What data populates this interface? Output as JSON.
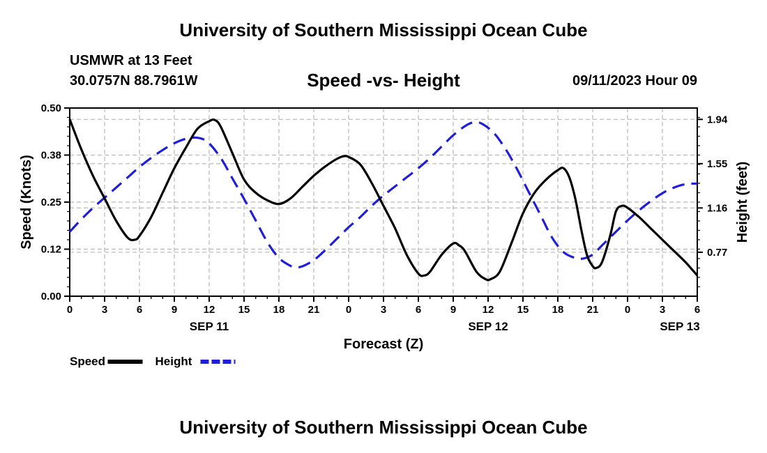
{
  "header": {
    "title": "University of Southern Mississippi Ocean Cube",
    "station_name": "USMWR at 13 Feet",
    "coords": "30.0757N  88.7961W",
    "chart_title": "Speed -vs- Height",
    "timestamp": "09/11/2023 Hour 09"
  },
  "footer": {
    "title": "University of Southern Mississippi Ocean Cube"
  },
  "chart_data": {
    "type": "line",
    "title": "Speed -vs- Height",
    "xlabel": "Forecast (Z)",
    "ylabel_left": "Speed (Knots)",
    "ylabel_right": "Height (feet)",
    "x_range": [
      0,
      54
    ],
    "y_left_range": [
      0,
      0.5
    ],
    "y_right_range": [
      0.383,
      2.04
    ],
    "x_ticks": [
      {
        "x": 0,
        "label": "0"
      },
      {
        "x": 3,
        "label": "3"
      },
      {
        "x": 6,
        "label": "6"
      },
      {
        "x": 9,
        "label": "9"
      },
      {
        "x": 12,
        "label": "12"
      },
      {
        "x": 15,
        "label": "15"
      },
      {
        "x": 18,
        "label": "18"
      },
      {
        "x": 21,
        "label": "21"
      },
      {
        "x": 24,
        "label": "0"
      },
      {
        "x": 27,
        "label": "3"
      },
      {
        "x": 30,
        "label": "6"
      },
      {
        "x": 33,
        "label": "9"
      },
      {
        "x": 36,
        "label": "12"
      },
      {
        "x": 39,
        "label": "15"
      },
      {
        "x": 42,
        "label": "18"
      },
      {
        "x": 45,
        "label": "21"
      },
      {
        "x": 48,
        "label": "0"
      },
      {
        "x": 51,
        "label": "3"
      },
      {
        "x": 54,
        "label": "6"
      }
    ],
    "date_labels": [
      {
        "x": 12,
        "label": "SEP 11"
      },
      {
        "x": 36,
        "label": "SEP 12"
      },
      {
        "x": 52.5,
        "label": "SEP 13"
      }
    ],
    "y_left_ticks": [
      {
        "value": 0.0,
        "label": "0.00"
      },
      {
        "value": 0.125,
        "label": "0.12"
      },
      {
        "value": 0.25,
        "label": "0.25"
      },
      {
        "value": 0.375,
        "label": "0.38"
      },
      {
        "value": 0.5,
        "label": "0.50"
      }
    ],
    "y_right_ticks": [
      {
        "value": 0.77,
        "label": "0.77"
      },
      {
        "value": 1.16,
        "label": "1.16"
      },
      {
        "value": 1.55,
        "label": "1.55"
      },
      {
        "value": 1.94,
        "label": "1.94"
      }
    ],
    "series": [
      {
        "name": "Speed",
        "color": "#000000",
        "style": "solid",
        "axis": "left",
        "points": [
          [
            0,
            0.47
          ],
          [
            1,
            0.39
          ],
          [
            2,
            0.32
          ],
          [
            3,
            0.26
          ],
          [
            4,
            0.2
          ],
          [
            5,
            0.155
          ],
          [
            5.6,
            0.15
          ],
          [
            6,
            0.16
          ],
          [
            7,
            0.21
          ],
          [
            8,
            0.275
          ],
          [
            9,
            0.34
          ],
          [
            10,
            0.395
          ],
          [
            11,
            0.445
          ],
          [
            12,
            0.465
          ],
          [
            12.5,
            0.468
          ],
          [
            13,
            0.45
          ],
          [
            14,
            0.38
          ],
          [
            15,
            0.31
          ],
          [
            16,
            0.275
          ],
          [
            17,
            0.255
          ],
          [
            18,
            0.245
          ],
          [
            19,
            0.26
          ],
          [
            20,
            0.29
          ],
          [
            21,
            0.32
          ],
          [
            22,
            0.345
          ],
          [
            23,
            0.365
          ],
          [
            23.6,
            0.372
          ],
          [
            24,
            0.37
          ],
          [
            25,
            0.35
          ],
          [
            26,
            0.3
          ],
          [
            27,
            0.24
          ],
          [
            28,
            0.18
          ],
          [
            29,
            0.11
          ],
          [
            30,
            0.06
          ],
          [
            30.5,
            0.055
          ],
          [
            31,
            0.065
          ],
          [
            32,
            0.11
          ],
          [
            33,
            0.14
          ],
          [
            33.5,
            0.135
          ],
          [
            34,
            0.12
          ],
          [
            35,
            0.065
          ],
          [
            35.8,
            0.045
          ],
          [
            36.2,
            0.045
          ],
          [
            37,
            0.065
          ],
          [
            38,
            0.14
          ],
          [
            39,
            0.22
          ],
          [
            40,
            0.275
          ],
          [
            41,
            0.31
          ],
          [
            42,
            0.335
          ],
          [
            42.5,
            0.34
          ],
          [
            43,
            0.315
          ],
          [
            43.5,
            0.26
          ],
          [
            44,
            0.18
          ],
          [
            44.5,
            0.11
          ],
          [
            45,
            0.08
          ],
          [
            45.3,
            0.075
          ],
          [
            45.8,
            0.09
          ],
          [
            46.5,
            0.16
          ],
          [
            47,
            0.225
          ],
          [
            47.5,
            0.24
          ],
          [
            48,
            0.235
          ],
          [
            49,
            0.21
          ],
          [
            50,
            0.18
          ],
          [
            51,
            0.15
          ],
          [
            52,
            0.12
          ],
          [
            53,
            0.09
          ],
          [
            54,
            0.055
          ]
        ]
      },
      {
        "name": "Height",
        "color": "#1f1fd6",
        "style": "dashed",
        "axis": "right",
        "points": [
          [
            0,
            0.95
          ],
          [
            1,
            1.06
          ],
          [
            2,
            1.16
          ],
          [
            3,
            1.25
          ],
          [
            4,
            1.34
          ],
          [
            5,
            1.43
          ],
          [
            6,
            1.52
          ],
          [
            7,
            1.6
          ],
          [
            8,
            1.67
          ],
          [
            9,
            1.73
          ],
          [
            10,
            1.77
          ],
          [
            10.8,
            1.78
          ],
          [
            11.5,
            1.765
          ],
          [
            12,
            1.73
          ],
          [
            13,
            1.6
          ],
          [
            14,
            1.42
          ],
          [
            15,
            1.24
          ],
          [
            16,
            1.05
          ],
          [
            17,
            0.86
          ],
          [
            18,
            0.72
          ],
          [
            19,
            0.65
          ],
          [
            19.5,
            0.64
          ],
          [
            20,
            0.645
          ],
          [
            21,
            0.7
          ],
          [
            22,
            0.79
          ],
          [
            23,
            0.89
          ],
          [
            24,
            0.99
          ],
          [
            25,
            1.08
          ],
          [
            26,
            1.18
          ],
          [
            27,
            1.27
          ],
          [
            28,
            1.35
          ],
          [
            29,
            1.43
          ],
          [
            30,
            1.51
          ],
          [
            31,
            1.6
          ],
          [
            32,
            1.7
          ],
          [
            33,
            1.8
          ],
          [
            34,
            1.88
          ],
          [
            34.8,
            1.915
          ],
          [
            35.5,
            1.9
          ],
          [
            36.5,
            1.82
          ],
          [
            37.5,
            1.68
          ],
          [
            38.5,
            1.5
          ],
          [
            39.5,
            1.3
          ],
          [
            40.5,
            1.1
          ],
          [
            41.5,
            0.9
          ],
          [
            42.5,
            0.77
          ],
          [
            43.5,
            0.72
          ],
          [
            44.2,
            0.715
          ],
          [
            45,
            0.75
          ],
          [
            46,
            0.85
          ],
          [
            47,
            0.95
          ],
          [
            48,
            1.05
          ],
          [
            49,
            1.14
          ],
          [
            50,
            1.22
          ],
          [
            51,
            1.29
          ],
          [
            52,
            1.34
          ],
          [
            53,
            1.37
          ],
          [
            54,
            1.375
          ]
        ]
      }
    ],
    "legend": [
      {
        "label": "Speed",
        "color": "#000000",
        "style": "solid"
      },
      {
        "label": "Height",
        "color": "#1f1fd6",
        "style": "dashed"
      }
    ]
  }
}
